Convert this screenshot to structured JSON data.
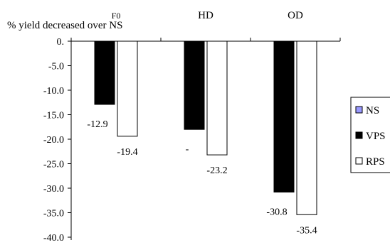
{
  "chart_data": {
    "type": "bar",
    "ylabel": "% yield decreased over NS",
    "categories": [
      "F0",
      "HD",
      "OD"
    ],
    "ylim": [
      -40,
      0
    ],
    "yticks": [
      "0.",
      "-5.0",
      "-10.0",
      "-15.0",
      "-20.0",
      "-25.0",
      "-30.0",
      "-35.0",
      "-40.0"
    ],
    "series": [
      {
        "name": "NS",
        "color": "#9999ff",
        "values": [
          0,
          0,
          0
        ]
      },
      {
        "name": "VPS",
        "color": "#000000",
        "values": [
          -12.9,
          -18.0,
          -30.8
        ]
      },
      {
        "name": "RPS",
        "color": "#ffffff",
        "values": [
          -19.4,
          -23.2,
          -35.4
        ]
      }
    ],
    "data_labels": {
      "VPS": [
        "-12.9",
        "-",
        "-30.8"
      ],
      "RPS": [
        "-19.4",
        "-23.2",
        "-35.4"
      ]
    },
    "legend": {
      "position": "right",
      "entries": [
        "NS",
        "VPS",
        "RPS"
      ]
    },
    "grid": false
  }
}
